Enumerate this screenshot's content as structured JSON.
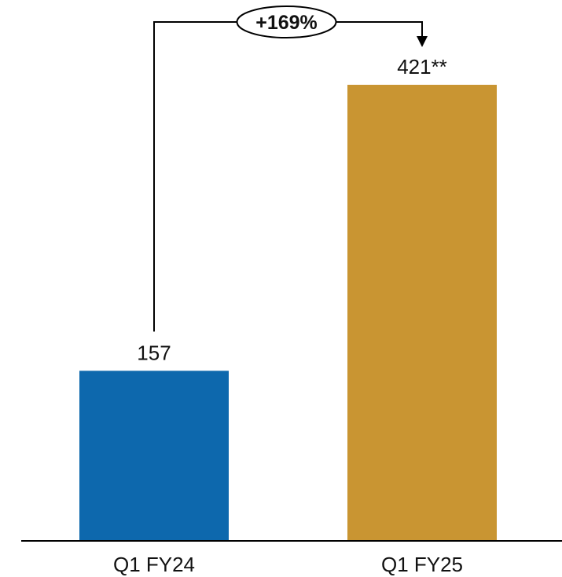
{
  "chart_data": {
    "type": "bar",
    "categories": [
      "Q1 FY24",
      "Q1 FY25"
    ],
    "values": [
      157,
      421
    ],
    "data_labels": [
      "157",
      "421**"
    ],
    "colors": [
      "#0D68AD",
      "#C99532"
    ],
    "ylim": [
      0,
      421
    ],
    "grid": false,
    "legend": "none",
    "annotation": {
      "text": "+169%",
      "from": "Q1 FY24",
      "to": "Q1 FY25"
    }
  }
}
